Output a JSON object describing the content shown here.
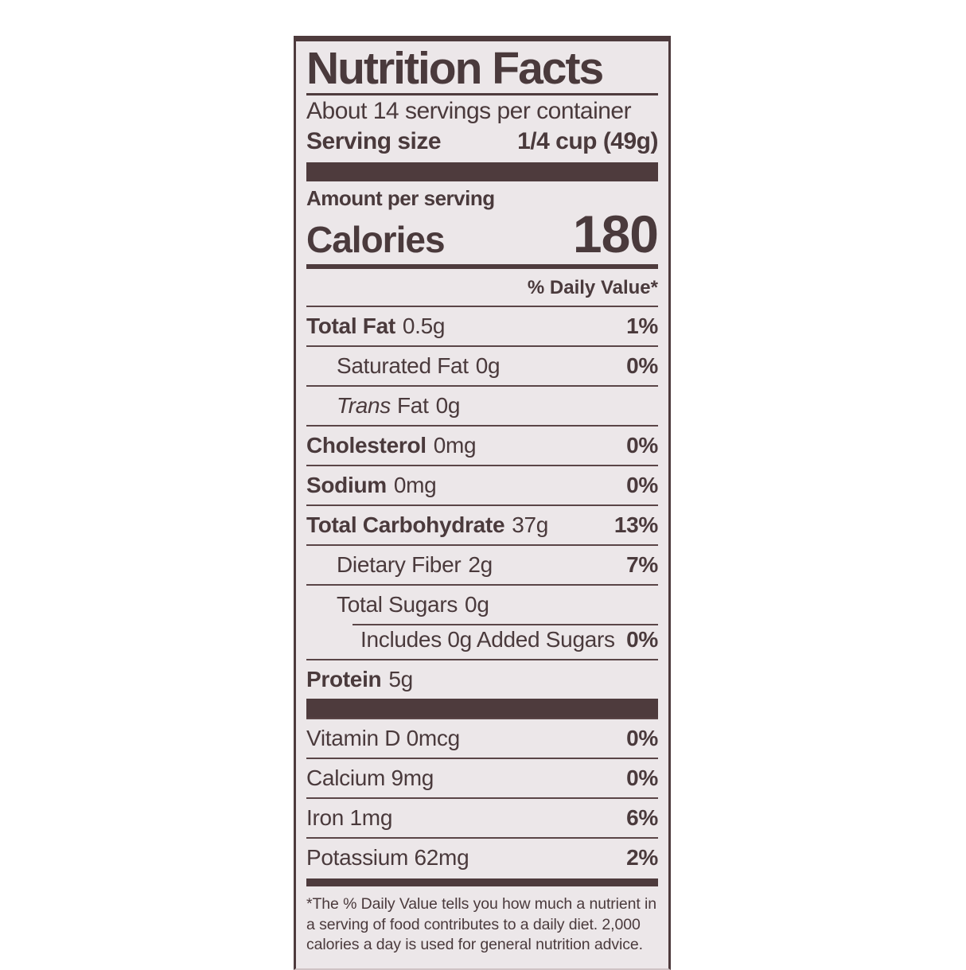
{
  "label": {
    "title": "Nutrition Facts",
    "servings_line": "About 14 servings per container",
    "serving_size": {
      "label": "Serving size",
      "value": "1/4 cup (49g)"
    },
    "amount_per_serving": "Amount per serving",
    "calories": {
      "label": "Calories",
      "value": "180"
    },
    "daily_value_header": "% Daily Value*",
    "nutrients": [
      {
        "name": "Total Fat",
        "amount": "0.5g",
        "dv": "1%"
      },
      {
        "name": "Saturated Fat",
        "amount": "0g",
        "dv": "0%"
      },
      {
        "prefix": "Trans",
        "name": "Fat",
        "amount": "0g",
        "dv": ""
      },
      {
        "name": "Cholesterol",
        "amount": "0mg",
        "dv": "0%"
      },
      {
        "name": "Sodium",
        "amount": "0mg",
        "dv": "0%"
      },
      {
        "name": "Total Carbohydrate",
        "amount": "37g",
        "dv": "13%"
      },
      {
        "name": "Dietary Fiber",
        "amount": "2g",
        "dv": "7%"
      },
      {
        "name": "Total Sugars",
        "amount": "0g",
        "dv": ""
      },
      {
        "name": "Includes 0g Added Sugars",
        "amount": "",
        "dv": "0%"
      },
      {
        "name": "Protein",
        "amount": "5g",
        "dv": ""
      }
    ],
    "vitamins": [
      {
        "name": "Vitamin D 0mcg",
        "dv": "0%"
      },
      {
        "name": "Calcium 9mg",
        "dv": "0%"
      },
      {
        "name": "Iron 1mg",
        "dv": "6%"
      },
      {
        "name": "Potassium 62mg",
        "dv": "2%"
      }
    ],
    "footnote": "*The % Daily Value tells you how much a nutrient in a serving of food contributes to a daily diet. 2,000 calories a day is used for general nutrition advice.",
    "colors": {
      "ink": "#4e3b3d",
      "label_background": "#ece7e9",
      "page_background": "#ffffff"
    }
  }
}
